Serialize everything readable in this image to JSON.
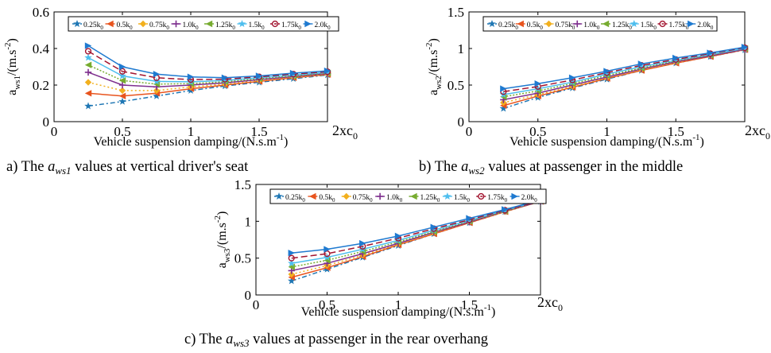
{
  "chart_data": [
    {
      "id": "a",
      "type": "line",
      "caption_prefix": "a) The ",
      "caption_var": "a",
      "caption_sub": "ws1",
      "caption_suffix": " values at vertical driver's seat",
      "ylabel_main": "a",
      "ylabel_sub": "ws1",
      "ylabel_unit": "/(m.s",
      "ylabel_unit_sup": "-2",
      "ylabel_close": ")",
      "xlabel_main": "Vehicle suspension damping/(N.s.m",
      "xlabel_sup": "-1",
      "xlabel_close": ")",
      "x_end_main": "2xc",
      "x_end_sub": "0",
      "xlim": [
        0,
        2
      ],
      "ylim": [
        0,
        0.6
      ],
      "x_ticks": [
        "0",
        "0.5",
        "1",
        "1.5"
      ],
      "x_tick_values": [
        0,
        0.5,
        1,
        1.5
      ],
      "y_ticks": [
        "0",
        "0.2",
        "0.4",
        "0.6"
      ],
      "y_tick_values": [
        0,
        0.2,
        0.4,
        0.6
      ],
      "x": [
        0.25,
        0.5,
        0.75,
        1.0,
        1.25,
        1.5,
        1.75,
        2.0
      ],
      "legend_placement": "top",
      "series": [
        {
          "name": "0.25k",
          "sub": "0",
          "values": [
            0.085,
            0.11,
            0.14,
            0.17,
            0.195,
            0.215,
            0.235,
            0.255
          ]
        },
        {
          "name": "0.5k",
          "sub": "0",
          "values": [
            0.155,
            0.14,
            0.155,
            0.18,
            0.2,
            0.22,
            0.24,
            0.258
          ]
        },
        {
          "name": "0.75k",
          "sub": "0",
          "values": [
            0.215,
            0.17,
            0.17,
            0.19,
            0.205,
            0.225,
            0.243,
            0.26
          ]
        },
        {
          "name": "1.0k",
          "sub": "0",
          "values": [
            0.27,
            0.2,
            0.19,
            0.2,
            0.212,
            0.23,
            0.247,
            0.263
          ]
        },
        {
          "name": "1.25k",
          "sub": "0",
          "values": [
            0.31,
            0.225,
            0.205,
            0.208,
            0.218,
            0.235,
            0.25,
            0.266
          ]
        },
        {
          "name": "1.5k",
          "sub": "0",
          "values": [
            0.35,
            0.25,
            0.22,
            0.218,
            0.225,
            0.24,
            0.255,
            0.27
          ]
        },
        {
          "name": "1.75k",
          "sub": "0",
          "values": [
            0.385,
            0.275,
            0.24,
            0.23,
            0.232,
            0.245,
            0.26,
            0.273
          ]
        },
        {
          "name": "2.0k",
          "sub": "0",
          "values": [
            0.415,
            0.3,
            0.26,
            0.245,
            0.24,
            0.25,
            0.265,
            0.278
          ]
        }
      ]
    },
    {
      "id": "b",
      "type": "line",
      "caption_prefix": "b) The ",
      "caption_var": "a",
      "caption_sub": "ws2",
      "caption_suffix": " values at passenger in the middle",
      "ylabel_main": "a",
      "ylabel_sub": "ws2",
      "ylabel_unit": "/(m.s",
      "ylabel_unit_sup": "-2",
      "ylabel_close": ")",
      "xlabel_main": "Vehicle suspension damping/(N.s.m",
      "xlabel_sup": "-1",
      "xlabel_close": ")",
      "x_end_main": "2xc",
      "x_end_sub": "0",
      "xlim": [
        0,
        2
      ],
      "ylim": [
        0,
        1.5
      ],
      "x_ticks": [
        "0",
        "0.5",
        "1",
        "1.5"
      ],
      "x_tick_values": [
        0,
        0.5,
        1,
        1.5
      ],
      "y_ticks": [
        "0",
        "0.5",
        "1",
        "1.5"
      ],
      "y_tick_values": [
        0,
        0.5,
        1,
        1.5
      ],
      "x": [
        0.25,
        0.5,
        0.75,
        1.0,
        1.25,
        1.5,
        1.75,
        2.0
      ],
      "legend_placement": "top",
      "series": [
        {
          "name": "0.25k",
          "sub": "0",
          "values": [
            0.18,
            0.33,
            0.46,
            0.58,
            0.7,
            0.8,
            0.89,
            0.98
          ]
        },
        {
          "name": "0.5k",
          "sub": "0",
          "values": [
            0.22,
            0.35,
            0.47,
            0.59,
            0.7,
            0.8,
            0.89,
            0.985
          ]
        },
        {
          "name": "0.75k",
          "sub": "0",
          "values": [
            0.26,
            0.37,
            0.48,
            0.6,
            0.71,
            0.81,
            0.9,
            0.99
          ]
        },
        {
          "name": "1.0k",
          "sub": "0",
          "values": [
            0.3,
            0.39,
            0.5,
            0.61,
            0.72,
            0.82,
            0.9,
            0.99
          ]
        },
        {
          "name": "1.25k",
          "sub": "0",
          "values": [
            0.34,
            0.42,
            0.52,
            0.63,
            0.73,
            0.83,
            0.91,
            1.0
          ]
        },
        {
          "name": "1.5k",
          "sub": "0",
          "values": [
            0.37,
            0.45,
            0.54,
            0.65,
            0.75,
            0.84,
            0.92,
            1.0
          ]
        },
        {
          "name": "1.75k",
          "sub": "0",
          "values": [
            0.41,
            0.48,
            0.57,
            0.67,
            0.77,
            0.85,
            0.93,
            1.01
          ]
        },
        {
          "name": "2.0k",
          "sub": "0",
          "values": [
            0.45,
            0.52,
            0.6,
            0.69,
            0.79,
            0.87,
            0.94,
            1.02
          ]
        }
      ]
    },
    {
      "id": "c",
      "type": "line",
      "caption_prefix": "c) The ",
      "caption_var": "a",
      "caption_sub": "ws3",
      "caption_suffix": " values at passenger in the rear overhang",
      "ylabel_main": "a",
      "ylabel_sub": "ws3",
      "ylabel_unit": "/(m.s",
      "ylabel_unit_sup": "-2",
      "ylabel_close": ")",
      "xlabel_main": "Vehicle suspension damping/(N.s.m",
      "xlabel_sup": "-1",
      "xlabel_close": ")",
      "x_end_main": "2xc",
      "x_end_sub": "0",
      "xlim": [
        0,
        2
      ],
      "ylim": [
        0,
        1.5
      ],
      "x_ticks": [
        "0",
        "0.5",
        "1",
        "1.5"
      ],
      "x_tick_values": [
        0,
        0.5,
        1,
        1.5
      ],
      "y_ticks": [
        "0",
        "0.5",
        "1",
        "1.5"
      ],
      "y_tick_values": [
        0,
        0.5,
        1,
        1.5
      ],
      "x": [
        0.25,
        0.5,
        0.75,
        1.0,
        1.25,
        1.5,
        1.75,
        2.0
      ],
      "legend_placement": "top",
      "series": [
        {
          "name": "0.25k",
          "sub": "0",
          "values": [
            0.19,
            0.35,
            0.51,
            0.67,
            0.83,
            0.98,
            1.13,
            1.27
          ]
        },
        {
          "name": "0.5k",
          "sub": "0",
          "values": [
            0.24,
            0.37,
            0.52,
            0.68,
            0.83,
            0.98,
            1.13,
            1.27
          ]
        },
        {
          "name": "0.75k",
          "sub": "0",
          "values": [
            0.28,
            0.4,
            0.54,
            0.69,
            0.84,
            0.99,
            1.13,
            1.27
          ]
        },
        {
          "name": "1.0k",
          "sub": "0",
          "values": [
            0.33,
            0.43,
            0.56,
            0.7,
            0.85,
            0.99,
            1.14,
            1.27
          ]
        },
        {
          "name": "1.25k",
          "sub": "0",
          "values": [
            0.38,
            0.47,
            0.59,
            0.72,
            0.86,
            1.0,
            1.14,
            1.28
          ]
        },
        {
          "name": "1.5k",
          "sub": "0",
          "values": [
            0.43,
            0.51,
            0.62,
            0.74,
            0.88,
            1.01,
            1.15,
            1.28
          ]
        },
        {
          "name": "1.75k",
          "sub": "0",
          "values": [
            0.5,
            0.56,
            0.66,
            0.77,
            0.9,
            1.02,
            1.15,
            1.28
          ]
        },
        {
          "name": "2.0k",
          "sub": "0",
          "values": [
            0.57,
            0.62,
            0.7,
            0.8,
            0.92,
            1.04,
            1.16,
            1.29
          ]
        }
      ]
    }
  ],
  "style": {
    "series_colors": [
      "#1f77b4",
      "#e8541e",
      "#f2b01e",
      "#7e2f8e",
      "#77ac30",
      "#4dbeee",
      "#a2142f",
      "#1f7ad0"
    ],
    "series_markers": [
      "star",
      "triangle-left",
      "diamond",
      "plus",
      "triangle-left",
      "star",
      "circle",
      "triangle-right"
    ],
    "series_dashes": [
      "6,3,2,3",
      "",
      "2,3",
      "",
      "2,2",
      "",
      "8,4",
      ""
    ]
  }
}
